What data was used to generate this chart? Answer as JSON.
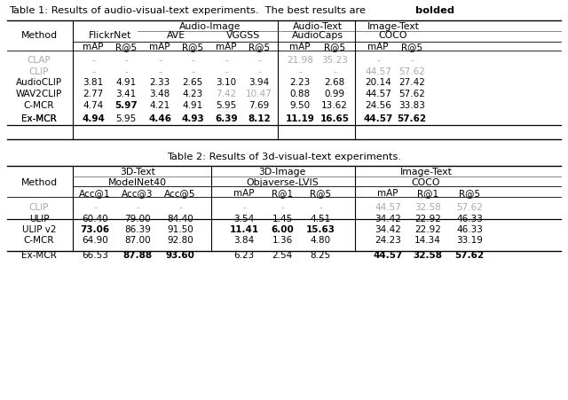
{
  "title1": "Table 1: Results of audio-visual-text experiments.  The best results are ",
  "title1_bold": "bolded",
  "title1_end": ".",
  "title2": "Table 2: Results of 3d-visual-text experiments.",
  "bg_color": "#ffffff",
  "gray_color": "#aaaaaa",
  "black_color": "#000000",
  "table1": {
    "col_groups": [
      {
        "label": "",
        "sub_labels": [
          "Method"
        ],
        "cols": 1
      },
      {
        "label": "",
        "sub_labels": [
          "FlickrNet"
        ],
        "metric_labels": [
          "mAP",
          "R@5"
        ],
        "cols": 2
      },
      {
        "label": "Audio-Image",
        "sub_labels": [
          "AVE"
        ],
        "metric_labels": [
          "mAP",
          "R@5"
        ],
        "cols": 2
      },
      {
        "label": "",
        "sub_labels": [
          "VGGSS"
        ],
        "metric_labels": [
          "mAP",
          "R@5"
        ],
        "cols": 2
      },
      {
        "label": "Audio-Text",
        "sub_labels": [
          "AudioCaps"
        ],
        "metric_labels": [
          "mAP",
          "R@5"
        ],
        "cols": 2
      },
      {
        "label": "Image-Text",
        "sub_labels": [
          "COCO"
        ],
        "metric_labels": [
          "mAP",
          "R@5"
        ],
        "cols": 2
      }
    ],
    "rows": [
      {
        "method": "CLAP",
        "gray": true,
        "separator": false,
        "values": [
          "-",
          "-",
          "-",
          "-",
          "-",
          "-",
          "21.98",
          "35.23",
          "-",
          "-"
        ]
      },
      {
        "method": "CLIP",
        "gray": true,
        "separator": false,
        "values": [
          "-",
          "-",
          "-",
          "-",
          "-",
          "-",
          "-",
          "-",
          "44.57",
          "57.62"
        ]
      },
      {
        "method": "AudioCLIP",
        "gray": false,
        "separator": false,
        "values": [
          "3.81",
          "4.91",
          "2.33",
          "2.65",
          "3.10",
          "3.94",
          "2.23",
          "2.68",
          "20.14",
          "27.42"
        ]
      },
      {
        "method": "WAV2CLIP",
        "gray": false,
        "separator": false,
        "values": [
          "2.77",
          "3.41",
          "3.48",
          "4.23",
          "7.42",
          "10.47",
          "0.88",
          "0.99",
          "44.57",
          "57.62"
        ],
        "gray_vals": [
          4,
          5
        ]
      },
      {
        "method": "C-MCR",
        "gray": false,
        "separator": false,
        "values": [
          "4.74",
          "5.97",
          "4.21",
          "4.91",
          "5.95",
          "7.69",
          "9.50",
          "13.62",
          "24.56",
          "33.83"
        ],
        "bold_vals": [
          1
        ]
      },
      {
        "method": "Ex-MCR",
        "gray": false,
        "separator": true,
        "values": [
          "4.94",
          "5.95",
          "4.46",
          "4.93",
          "6.39",
          "8.12",
          "11.19",
          "16.65",
          "44.57",
          "57.62"
        ],
        "bold_vals": [
          0,
          2,
          3,
          4,
          5,
          6,
          7,
          8,
          9
        ]
      }
    ]
  },
  "table2": {
    "rows": [
      {
        "method": "CLIP",
        "gray": true,
        "separator": false,
        "values": [
          "-",
          "-",
          "-",
          "-",
          "-",
          "-",
          "44.57",
          "32.58",
          "57.62"
        ]
      },
      {
        "method": "ULIP",
        "gray": false,
        "separator": false,
        "values": [
          "60.40",
          "79.00",
          "84.40",
          "3.54",
          "1.45",
          "4.51",
          "34.42",
          "22.92",
          "46.33"
        ]
      },
      {
        "method": "ULIP v2",
        "gray": false,
        "separator": false,
        "values": [
          "73.06",
          "86.39",
          "91.50",
          "11.41",
          "6.00",
          "15.63",
          "34.42",
          "22.92",
          "46.33"
        ],
        "bold_vals": [
          0,
          3,
          4,
          5
        ]
      },
      {
        "method": "C-MCR",
        "gray": false,
        "separator": false,
        "values": [
          "64.90",
          "87.00",
          "92.80",
          "3.84",
          "1.36",
          "4.80",
          "24.23",
          "14.34",
          "33.19"
        ]
      },
      {
        "method": "Ex-MCR",
        "gray": false,
        "separator": true,
        "values": [
          "66.53",
          "87.88",
          "93.60",
          "6.23",
          "2.54",
          "8.25",
          "44.57",
          "32.58",
          "57.62"
        ],
        "bold_vals": [
          1,
          2,
          6,
          7,
          8
        ]
      }
    ]
  }
}
